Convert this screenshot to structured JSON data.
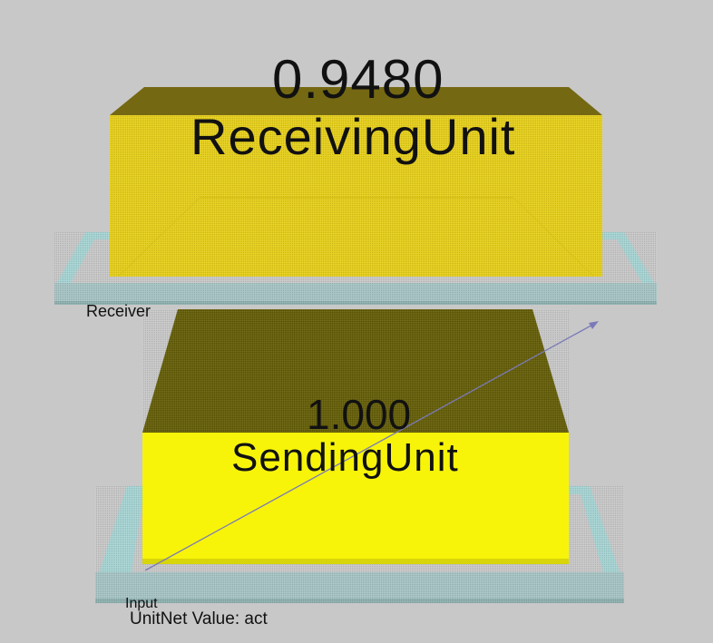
{
  "network_view": {
    "receiving_layer": {
      "label": "Receiver",
      "unit": {
        "name": "ReceivingUnit",
        "value": "0.9480",
        "color": "#e6cf1c"
      }
    },
    "input_layer": {
      "label": "Input",
      "unit": {
        "name": "SendingUnit",
        "value": "1.000",
        "color": "#f7f40a"
      }
    },
    "status": {
      "text": "UnitNet Value: act"
    },
    "colors": {
      "background": "#c8c8c8",
      "layer_frame": "#a7d4d4",
      "receiving_unit": "#e6cf1c",
      "sending_unit": "#f7f40a",
      "sending_unit_top": "#655f0a",
      "connection": "#7a7ab8"
    }
  }
}
